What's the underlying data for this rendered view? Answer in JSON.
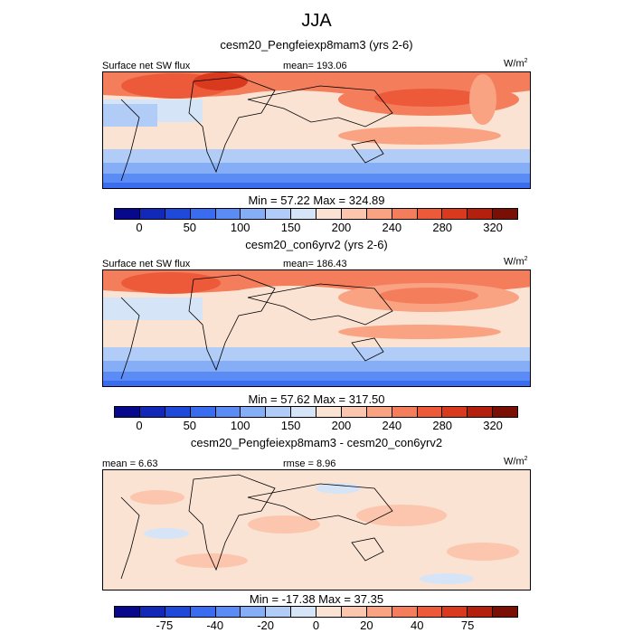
{
  "title": "JJA",
  "panels": [
    {
      "subtitle": "cesm20_Pengfeiexp8mam3 (yrs 2-6)",
      "left_label": "Surface net SW flux",
      "center_label": "mean= 193.06",
      "units_main": "W/m",
      "units_sup": "2",
      "minmax": "Min =  57.22 Max = 324.89",
      "colorbar_ticks": [
        "0",
        "50",
        "100",
        "150",
        "200",
        "240",
        "280",
        "320"
      ],
      "palette": "absolute"
    },
    {
      "subtitle": "cesm20_con6yrv2 (yrs 2-6)",
      "left_label": "Surface net SW flux",
      "center_label": "mean= 186.43",
      "units_main": "W/m",
      "units_sup": "2",
      "minmax": "Min =  57.62 Max = 317.50",
      "colorbar_ticks": [
        "0",
        "50",
        "100",
        "150",
        "200",
        "240",
        "280",
        "320"
      ],
      "palette": "absolute"
    },
    {
      "subtitle": "cesm20_Pengfeiexp8mam3 - cesm20_con6yrv2",
      "left_label": "mean =   6.63",
      "center_label": "rmse =   8.96",
      "units_main": "W/m",
      "units_sup": "2",
      "minmax": "Min = -17.38 Max =  37.35",
      "colorbar_ticks": [
        "-75",
        "-40",
        "-20",
        "0",
        "20",
        "40",
        "75"
      ],
      "palette": "difference"
    }
  ],
  "colors": {
    "absolute": [
      "#08088c",
      "#1229b8",
      "#1f4ad9",
      "#3a6cf0",
      "#5b8cf5",
      "#86aef7",
      "#b0ccf7",
      "#d6e4f7",
      "#fbe3d4",
      "#fbc6ad",
      "#f9a383",
      "#f47e5c",
      "#ec5a3a",
      "#d93a1e",
      "#b3200e",
      "#7a0f05"
    ],
    "difference": [
      "#08088c",
      "#1229b8",
      "#1f4ad9",
      "#3a6cf0",
      "#5b8cf5",
      "#86aef7",
      "#b0ccf7",
      "#d6e4f7",
      "#fbe3d4",
      "#fbc6ad",
      "#f9a383",
      "#f47e5c",
      "#ec5a3a",
      "#d93a1e",
      "#b3200e",
      "#7a0f05"
    ]
  }
}
